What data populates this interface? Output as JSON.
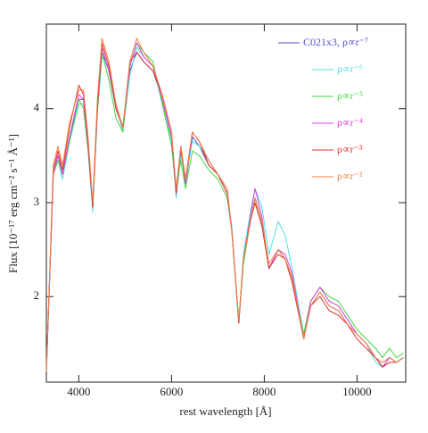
{
  "chart_data": {
    "type": "line",
    "xlabel": "rest wavelength [Å]",
    "ylabel": "Flux [10⁻¹⁷ erg cm⁻² s⁻¹ Å⁻¹]",
    "xlim": [
      3300,
      11050
    ],
    "xticks": [
      4000,
      6000,
      8000,
      10000
    ],
    "ylim": [
      1.09,
      4.9
    ],
    "yticks": [
      2,
      3,
      4
    ],
    "legend": "upper right",
    "x": [
      3300,
      3450,
      3550,
      3650,
      3800,
      4000,
      4100,
      4200,
      4300,
      4400,
      4500,
      4650,
      4800,
      4950,
      5100,
      5250,
      5400,
      5600,
      5800,
      6000,
      6100,
      6200,
      6300,
      6450,
      6600,
      6800,
      7000,
      7200,
      7300,
      7450,
      7550,
      7700,
      7800,
      7950,
      8100,
      8300,
      8450,
      8600,
      8850,
      9000,
      9200,
      9400,
      9600,
      9800,
      10000,
      10200,
      10400,
      10550,
      10700,
      10850,
      11000
    ],
    "series": [
      {
        "name": "C021x3, ρ∝r⁻⁷",
        "color": "#5050d0",
        "values": [
          1.2,
          3.3,
          3.5,
          3.3,
          3.7,
          4.1,
          4.1,
          3.6,
          2.95,
          4.0,
          4.6,
          4.4,
          4.0,
          3.8,
          4.4,
          4.6,
          4.5,
          4.4,
          4.1,
          3.7,
          3.1,
          3.55,
          3.2,
          3.7,
          3.6,
          3.4,
          3.3,
          3.1,
          2.7,
          1.72,
          2.4,
          2.8,
          3.05,
          2.8,
          2.3,
          2.5,
          2.4,
          2.2,
          1.55,
          1.9,
          2.05,
          1.9,
          1.85,
          1.7,
          1.6,
          1.5,
          1.35,
          1.25,
          1.35,
          1.3,
          1.35
        ]
      },
      {
        "name": "ρ∝r⁻⁶",
        "color": "#50e0e0",
        "values": [
          1.2,
          3.3,
          3.45,
          3.25,
          3.65,
          4.05,
          4.05,
          3.55,
          2.9,
          3.95,
          4.55,
          4.45,
          4.05,
          3.75,
          4.35,
          4.65,
          4.55,
          4.45,
          4.05,
          3.65,
          3.05,
          3.5,
          3.25,
          3.65,
          3.6,
          3.45,
          3.3,
          3.1,
          2.75,
          1.72,
          2.45,
          2.9,
          3.15,
          2.95,
          2.45,
          2.8,
          2.65,
          2.3,
          1.6,
          1.95,
          2.1,
          1.95,
          1.9,
          1.75,
          1.6,
          1.5,
          1.3,
          1.25,
          1.3,
          1.3,
          1.35
        ]
      },
      {
        "name": "ρ∝r⁻⁵",
        "color": "#40d840",
        "values": [
          1.2,
          3.3,
          3.45,
          3.3,
          3.65,
          4.1,
          4.0,
          3.55,
          2.95,
          3.95,
          4.6,
          4.3,
          3.9,
          3.75,
          4.45,
          4.7,
          4.6,
          4.5,
          4.05,
          3.6,
          3.15,
          3.45,
          3.15,
          3.55,
          3.5,
          3.35,
          3.25,
          3.05,
          2.7,
          1.75,
          2.35,
          2.8,
          3.0,
          2.75,
          2.3,
          2.5,
          2.4,
          2.2,
          1.6,
          1.95,
          2.1,
          2.0,
          1.95,
          1.8,
          1.65,
          1.55,
          1.45,
          1.35,
          1.45,
          1.35,
          1.4
        ]
      },
      {
        "name": "ρ∝r⁻⁴",
        "color": "#e040e0",
        "values": [
          1.2,
          3.3,
          3.5,
          3.3,
          3.7,
          4.15,
          4.1,
          3.6,
          2.95,
          4.0,
          4.65,
          4.4,
          4.05,
          3.8,
          4.45,
          4.7,
          4.55,
          4.45,
          4.1,
          3.7,
          3.1,
          3.6,
          3.2,
          3.75,
          3.65,
          3.45,
          3.3,
          3.1,
          2.7,
          1.72,
          2.4,
          2.85,
          3.15,
          2.85,
          2.3,
          2.5,
          2.45,
          2.25,
          1.55,
          1.95,
          2.1,
          1.95,
          1.9,
          1.75,
          1.6,
          1.5,
          1.35,
          1.25,
          1.35,
          1.3,
          1.35
        ]
      },
      {
        "name": "ρ∝r⁻³",
        "color": "#e03030",
        "values": [
          1.2,
          3.35,
          3.55,
          3.35,
          3.8,
          4.25,
          4.15,
          3.65,
          2.95,
          4.05,
          4.7,
          4.45,
          4.0,
          3.8,
          4.5,
          4.6,
          4.5,
          4.4,
          4.15,
          3.75,
          3.1,
          3.6,
          3.25,
          3.75,
          3.65,
          3.4,
          3.3,
          3.1,
          2.7,
          1.72,
          2.4,
          2.8,
          3.0,
          2.75,
          2.3,
          2.45,
          2.4,
          2.15,
          1.55,
          1.9,
          2.0,
          1.85,
          1.8,
          1.7,
          1.55,
          1.45,
          1.35,
          1.25,
          1.3,
          1.3,
          1.35
        ]
      },
      {
        "name": "ρ∝r⁻²",
        "color": "#f08040",
        "values": [
          1.2,
          3.4,
          3.6,
          3.4,
          3.85,
          4.2,
          4.2,
          3.7,
          3.0,
          4.1,
          4.75,
          4.5,
          4.05,
          3.8,
          4.5,
          4.75,
          4.6,
          4.45,
          4.15,
          3.75,
          3.15,
          3.6,
          3.25,
          3.75,
          3.65,
          3.45,
          3.3,
          3.15,
          2.7,
          1.75,
          2.4,
          2.8,
          3.05,
          2.8,
          2.35,
          2.5,
          2.4,
          2.2,
          1.55,
          1.9,
          2.05,
          1.9,
          1.85,
          1.7,
          1.6,
          1.5,
          1.35,
          1.3,
          1.35,
          1.3,
          1.35
        ]
      }
    ]
  }
}
